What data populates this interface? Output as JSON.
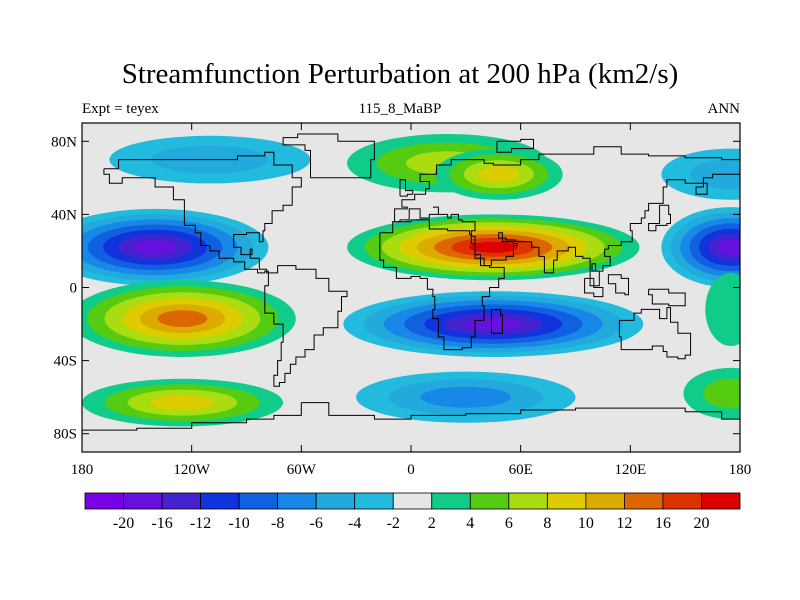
{
  "title": "Streamfunction Perturbation at 200 hPa (km2/s)",
  "left_string": "Expt = teyex",
  "center_string": "115_8_MaBP",
  "right_string": "ANN",
  "map": {
    "projection": "cylindrical equidistant",
    "lon_range": [
      -180,
      180
    ],
    "lat_range": [
      -90,
      90
    ],
    "lat_ticks": [
      {
        "value": 80,
        "label": "80N"
      },
      {
        "value": 40,
        "label": "40N"
      },
      {
        "value": 0,
        "label": "0"
      },
      {
        "value": -40,
        "label": "40S"
      },
      {
        "value": -80,
        "label": "80S"
      }
    ],
    "lon_ticks": [
      {
        "value": -180,
        "label": "180"
      },
      {
        "value": -120,
        "label": "120W"
      },
      {
        "value": -60,
        "label": "60W"
      },
      {
        "value": 0,
        "label": "0"
      },
      {
        "value": 60,
        "label": "60E"
      },
      {
        "value": 120,
        "label": "120E"
      },
      {
        "value": 180,
        "label": "180"
      }
    ],
    "background_color": "#e6e6e6"
  },
  "colorbar": {
    "colors": [
      "#7a00e6",
      "#6611dd",
      "#4422d0",
      "#1133dd",
      "#1160e0",
      "#1788e8",
      "#22aadd",
      "#22bbdd",
      "#e6e6e6",
      "#11cc88",
      "#55cc11",
      "#aadd11",
      "#ddcc00",
      "#ddaa00",
      "#dd6600",
      "#dd3300",
      "#dd0000"
    ],
    "labels": [
      "-20",
      "-16",
      "-12",
      "-10",
      "-8",
      "-6",
      "-4",
      "-2",
      "2",
      "4",
      "6",
      "8",
      "10",
      "12",
      "16",
      "20"
    ]
  },
  "chart_data": {
    "type": "filled contour map",
    "title": "Streamfunction Perturbation at 200 hPa (km2/s)",
    "units": "km2/s",
    "levels": [
      -20,
      -16,
      -12,
      -10,
      -8,
      -6,
      -4,
      -2,
      2,
      4,
      6,
      8,
      10,
      12,
      16,
      20
    ],
    "features": [
      {
        "lon": -140,
        "lat": 22,
        "value": -20
      },
      {
        "lon": 175,
        "lat": 22,
        "value": -20
      },
      {
        "lon": 45,
        "lat": -20,
        "value": -18
      },
      {
        "lon": -125,
        "lat": -17,
        "value": 13
      },
      {
        "lon": 45,
        "lat": 22,
        "value": 20
      },
      {
        "lon": 20,
        "lat": 68,
        "value": 7
      },
      {
        "lon": 48,
        "lat": 62,
        "value": 8
      },
      {
        "lon": -110,
        "lat": 70,
        "value": -6
      },
      {
        "lon": 175,
        "lat": 62,
        "value": -6
      },
      {
        "lon": 30,
        "lat": -60,
        "value": -8
      },
      {
        "lon": -125,
        "lat": -63,
        "value": 9
      },
      {
        "lon": 175,
        "lat": -58,
        "value": 4
      },
      {
        "lon": 175,
        "lat": -12,
        "value": 3
      }
    ]
  }
}
